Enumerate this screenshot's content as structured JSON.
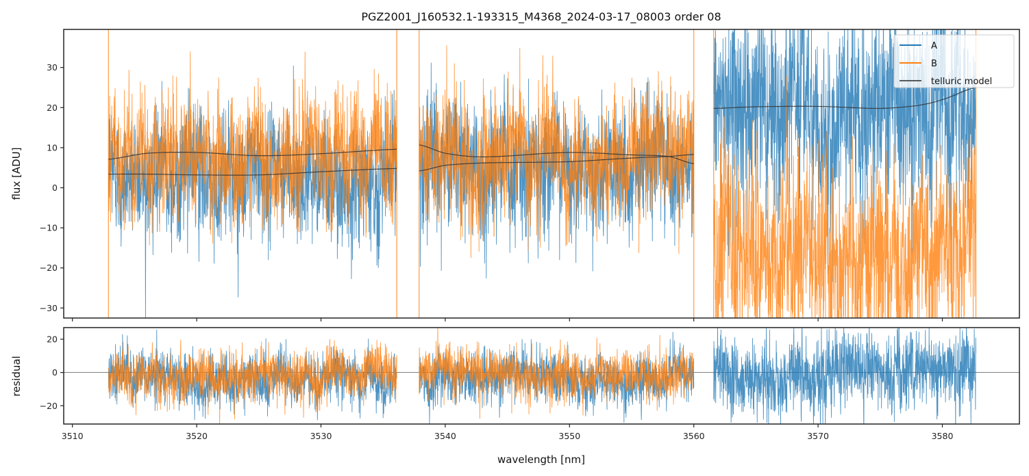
{
  "chart_data": {
    "type": "line",
    "title": "PGZ2001_J160532.1-193315_M4368_2024-03-17_08003  order 08",
    "xlabel": "wavelength [nm]",
    "xlim": [
      3509.3,
      3586.2
    ],
    "xticks": [
      3510,
      3520,
      3530,
      3540,
      3550,
      3560,
      3570,
      3580
    ],
    "xtick_labels": [
      "3510",
      "3520",
      "3530",
      "3540",
      "3550",
      "3560",
      "3570",
      "3580"
    ],
    "colors": {
      "A": "#1f77b4",
      "B": "#ff7f0e",
      "telluric": "#333333"
    },
    "legend": {
      "location": "upper right",
      "entries": [
        {
          "key": "A",
          "label": "A"
        },
        {
          "key": "B",
          "label": "B"
        },
        {
          "key": "telluric",
          "label": "telluric model"
        }
      ]
    },
    "panels": [
      {
        "name": "flux",
        "ylabel": "flux [ADU]",
        "ylim": [
          -32.5,
          39.5
        ],
        "yticks": [
          -30,
          -20,
          -10,
          0,
          10,
          20,
          30
        ],
        "ytick_labels": [
          "−30",
          "−20",
          "−10",
          "0",
          "10",
          "20",
          "30"
        ],
        "segments": [
          {
            "range": [
              3512.9,
              3536.1
            ],
            "A": {
              "level": 3.5,
              "noise": 7.5
            },
            "B": {
              "level": 8.0,
              "noise": 7.5
            },
            "telluric_upper": {
              "x": [
                3512.9,
                3516,
                3520,
                3525,
                3530,
                3536.1
              ],
              "y": [
                7.1,
                8.6,
                8.8,
                8.0,
                8.5,
                9.6
              ]
            },
            "telluric_lower": {
              "x": [
                3512.9,
                3516,
                3520,
                3525,
                3530,
                3536.1
              ],
              "y": [
                3.4,
                3.4,
                3.2,
                3.2,
                4.0,
                4.8
              ]
            }
          },
          {
            "range": [
              3537.9,
              3560.0
            ],
            "A": {
              "level": 5.5,
              "noise": 7.5
            },
            "B": {
              "level": 8.0,
              "noise": 7.5
            },
            "telluric_upper": {
              "x": [
                3537.9,
                3540,
                3543,
                3550,
                3555,
                3558,
                3560.0
              ],
              "y": [
                10.7,
                8.6,
                7.7,
                8.8,
                8.2,
                7.8,
                6.0
              ]
            },
            "telluric_lower": {
              "x": [
                3537.9,
                3540,
                3543,
                3550,
                3555,
                3558,
                3560.0
              ],
              "y": [
                4.2,
                5.6,
                6.2,
                6.5,
                7.4,
                7.8,
                8.3
              ]
            }
          },
          {
            "range": [
              3561.6,
              3582.7
            ],
            "A": {
              "level": 20.0,
              "noise": 12.0
            },
            "B": {
              "level": -15.0,
              "noise": 12.0
            },
            "telluric_upper": {
              "x": [
                3561.6,
                3565,
                3570,
                3575,
                3578,
                3580,
                3582.7
              ],
              "y": [
                19.8,
                20.2,
                20.3,
                19.8,
                20.5,
                22.0,
                25.0
              ]
            }
          }
        ]
      },
      {
        "name": "residual",
        "ylabel": "residual",
        "ylim": [
          -31,
          27
        ],
        "yticks": [
          -20,
          0,
          20
        ],
        "ytick_labels": [
          "−20",
          "0",
          "20"
        ],
        "zero_line": 0,
        "segments": [
          {
            "range": [
              3512.9,
              3536.1
            ],
            "A": {
              "level": -3.0,
              "noise": 7.5
            },
            "B": {
              "level": -1.0,
              "noise": 7.5
            }
          },
          {
            "range": [
              3537.9,
              3560.0
            ],
            "A": {
              "level": -3.0,
              "noise": 7.5
            },
            "B": {
              "level": -1.0,
              "noise": 7.5
            }
          },
          {
            "range": [
              3561.6,
              3582.7
            ],
            "A": {
              "level": 0.0,
              "noise": 11.0
            }
          }
        ]
      }
    ]
  }
}
